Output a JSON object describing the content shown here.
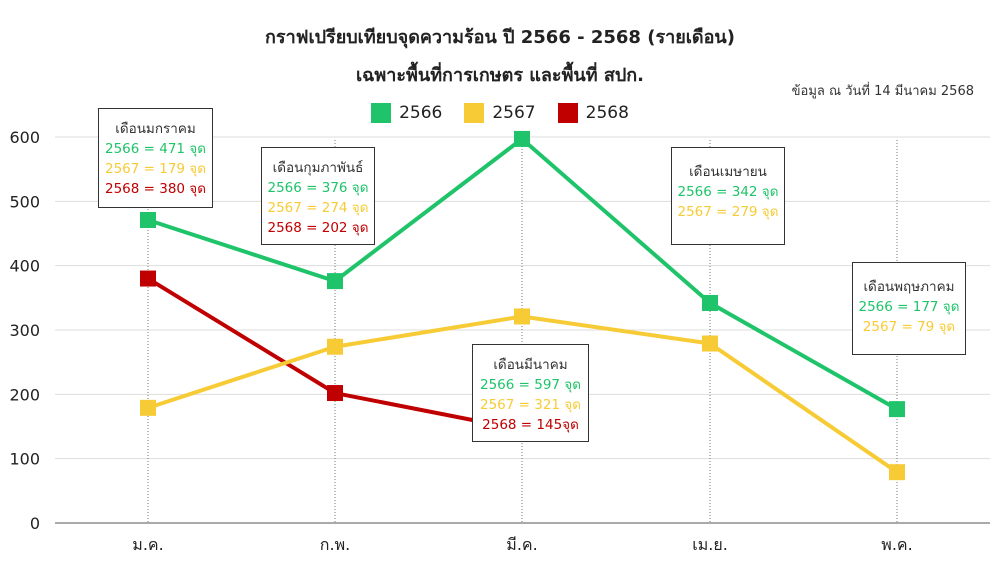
{
  "chart_data": {
    "type": "line",
    "title": "กราฟเปรียบเทียบจุดความร้อน ปี 2566 - 2568 (รายเดือน)",
    "subtitle": "เฉพาะพื้นที่การเกษตร และพื้นที่ สปก.",
    "note": "ข้อมูล ณ วันที่ 14 มีนาคม 2568",
    "categories": [
      "ม.ค.",
      "ก.พ.",
      "มี.ค.",
      "เม.ย.",
      "พ.ค."
    ],
    "ylim": [
      0,
      600
    ],
    "yticks": [
      0,
      100,
      200,
      300,
      400,
      500,
      600
    ],
    "grid": true,
    "legend_position": "top",
    "series": [
      {
        "name": "2566",
        "color": "#1fc46a",
        "values": [
          471,
          376,
          597,
          342,
          177
        ]
      },
      {
        "name": "2567",
        "color": "#f7cb35",
        "values": [
          179,
          274,
          321,
          279,
          79
        ]
      },
      {
        "name": "2568",
        "color": "#c00000",
        "values": [
          380,
          202,
          145,
          null,
          null
        ]
      }
    ],
    "annotations": [
      {
        "heading": "เดือนมกราคม",
        "lines": [
          {
            "text": "2566 = 471 จุด",
            "color": "#1fc46a"
          },
          {
            "text": "2567 = 179 จุด",
            "color": "#f7cb35"
          },
          {
            "text": "2568 = 380 จุด",
            "color": "#c00000"
          }
        ]
      },
      {
        "heading": "เดือนกุมภาพันธ์",
        "lines": [
          {
            "text": "2566 = 376 จุด",
            "color": "#1fc46a"
          },
          {
            "text": "2567 = 274 จุด",
            "color": "#f7cb35"
          },
          {
            "text": "2568 = 202 จุด",
            "color": "#c00000"
          }
        ]
      },
      {
        "heading": "เดือนมีนาคม",
        "lines": [
          {
            "text": "2566 = 597 จุด",
            "color": "#1fc46a"
          },
          {
            "text": "2567 = 321 จุด",
            "color": "#f7cb35"
          },
          {
            "text": "2568 = 145จุด",
            "color": "#c00000"
          }
        ]
      },
      {
        "heading": "เดือนเมษายน",
        "lines": [
          {
            "text": "2566 = 342 จุด",
            "color": "#1fc46a"
          },
          {
            "text": "2567 = 279 จุด",
            "color": "#f7cb35"
          }
        ]
      },
      {
        "heading": "เดือนพฤษภาคม",
        "lines": [
          {
            "text": "2566 = 177 จุด",
            "color": "#1fc46a"
          },
          {
            "text": "2567 = 79 จุด",
            "color": "#f7cb35"
          }
        ]
      }
    ]
  }
}
